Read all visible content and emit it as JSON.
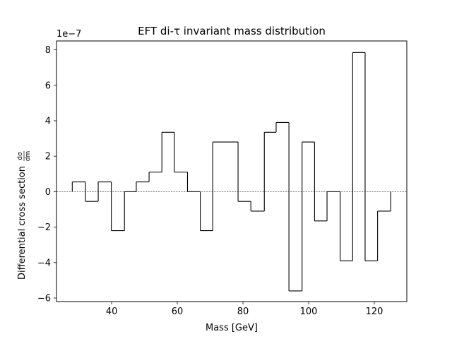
{
  "chart_data": {
    "type": "step",
    "title": "EFT di-τ invariant mass distribution",
    "xlabel": "Mass [GeV]",
    "ylabel": "Differential cross section",
    "ylabel_fraction": {
      "numerator": "dσ",
      "denominator": "dm"
    },
    "y_offset_label": "1e−7",
    "xlim": [
      23.2,
      129.9
    ],
    "ylim": [
      -6.2,
      8.5
    ],
    "x_ticks": [
      40,
      60,
      80,
      100,
      120
    ],
    "y_ticks": [
      -6,
      -4,
      -2,
      0,
      2,
      4,
      6,
      8
    ],
    "reference_line": {
      "y": 0,
      "style": "dashed"
    },
    "bins": {
      "edges": [
        28,
        32,
        35.9,
        39.9,
        43.9,
        47.5,
        51.4,
        55.3,
        59.1,
        63.1,
        67,
        70.8,
        78.5,
        82.4,
        86.5,
        90.1,
        94,
        98,
        101.8,
        105.6,
        109.6,
        113.4,
        117.2,
        121,
        125
      ],
      "values": [
        0.55,
        -0.55,
        0.55,
        -2.2,
        0,
        0.55,
        1.1,
        3.35,
        1.1,
        0,
        -2.2,
        2.8,
        -0.55,
        -1.1,
        3.35,
        3.9,
        -5.6,
        2.8,
        -1.65,
        0,
        -3.9,
        7.85,
        -3.9,
        -1.1
      ]
    }
  }
}
